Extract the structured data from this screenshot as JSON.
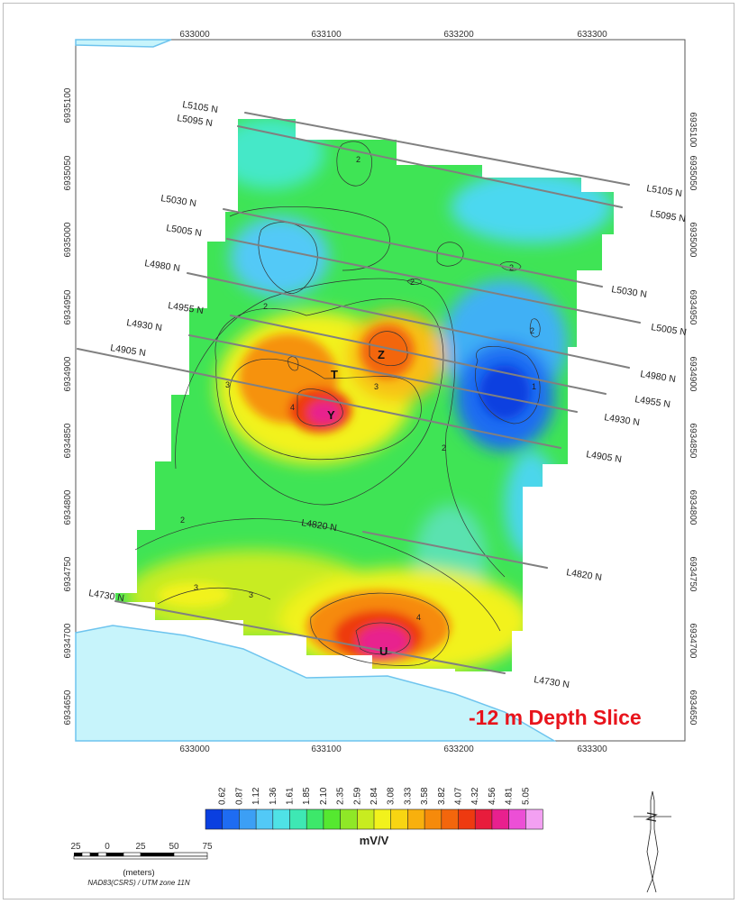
{
  "map": {
    "depth_label": "-12 m Depth Slice",
    "easting_ticks": [
      "633000",
      "633100",
      "633200",
      "633300"
    ],
    "northing_ticks": [
      "6935100",
      "6935050",
      "6935000",
      "6934950",
      "6934900",
      "6934850",
      "6934800",
      "6934750",
      "6934700",
      "6934650"
    ],
    "survey_lines": [
      {
        "left": "L5105 N",
        "right": "L5105 N"
      },
      {
        "left": "L5095 N",
        "right": "L5095 N"
      },
      {
        "left": "L5030 N",
        "right": "L5030 N"
      },
      {
        "left": "L5005 N",
        "right": "L5005 N"
      },
      {
        "left": "L4980 N",
        "right": "L4980 N"
      },
      {
        "left": "L4955 N",
        "right": "L4955 N"
      },
      {
        "left": "L4930 N",
        "right": "L4930 N"
      },
      {
        "left": "L4905 N",
        "right": "L4905 N"
      },
      {
        "left": "L4820 N",
        "right": "L4820 N"
      },
      {
        "left": "L4730 N",
        "right": "L4730 N"
      }
    ],
    "anomalies": [
      "Z",
      "T",
      "Y",
      "U"
    ],
    "contour_labels": [
      "2",
      "2",
      "2",
      "2",
      "2",
      "2",
      "2",
      "3",
      "3",
      "3",
      "4",
      "4",
      "1",
      "3"
    ]
  },
  "legend": {
    "values": [
      0.62,
      0.87,
      1.12,
      1.36,
      1.61,
      1.85,
      2.1,
      2.35,
      2.59,
      2.84,
      3.08,
      3.33,
      3.58,
      3.82,
      4.07,
      4.32,
      4.56,
      4.81,
      5.05
    ],
    "value_labels": [
      "0.62",
      "0.87",
      "1.12",
      "1.36",
      "1.61",
      "1.85",
      "2.10",
      "2.35",
      "2.59",
      "2.84",
      "3.08",
      "3.33",
      "3.58",
      "3.82",
      "4.07",
      "4.32",
      "4.56",
      "4.81",
      "5.05"
    ],
    "colors": [
      "#0a3fe0",
      "#1e6cf2",
      "#3c9ff5",
      "#52c9f7",
      "#4fe2e6",
      "#3ee8b4",
      "#3de86a",
      "#55e830",
      "#8fe827",
      "#c8ec20",
      "#f2f21c",
      "#f8d512",
      "#f8b00d",
      "#f68a0b",
      "#f3660c",
      "#ee3a10",
      "#e81c3c",
      "#e8208e",
      "#ec4fd6",
      "#f3a0f2"
    ],
    "unit": "mV/V"
  },
  "scale_bar": {
    "ticks": [
      "25",
      "0",
      "25",
      "50",
      "75"
    ],
    "unit": "(meters)",
    "projection": "NAD83(CSRS) / UTM zone 11N"
  },
  "colors": {
    "water": "#c7f4fb",
    "shoreline": "#6ec4ee",
    "survey_line": "#808080",
    "depth_label": "#e8141c"
  },
  "icons": [
    "north-arrow-icon"
  ]
}
